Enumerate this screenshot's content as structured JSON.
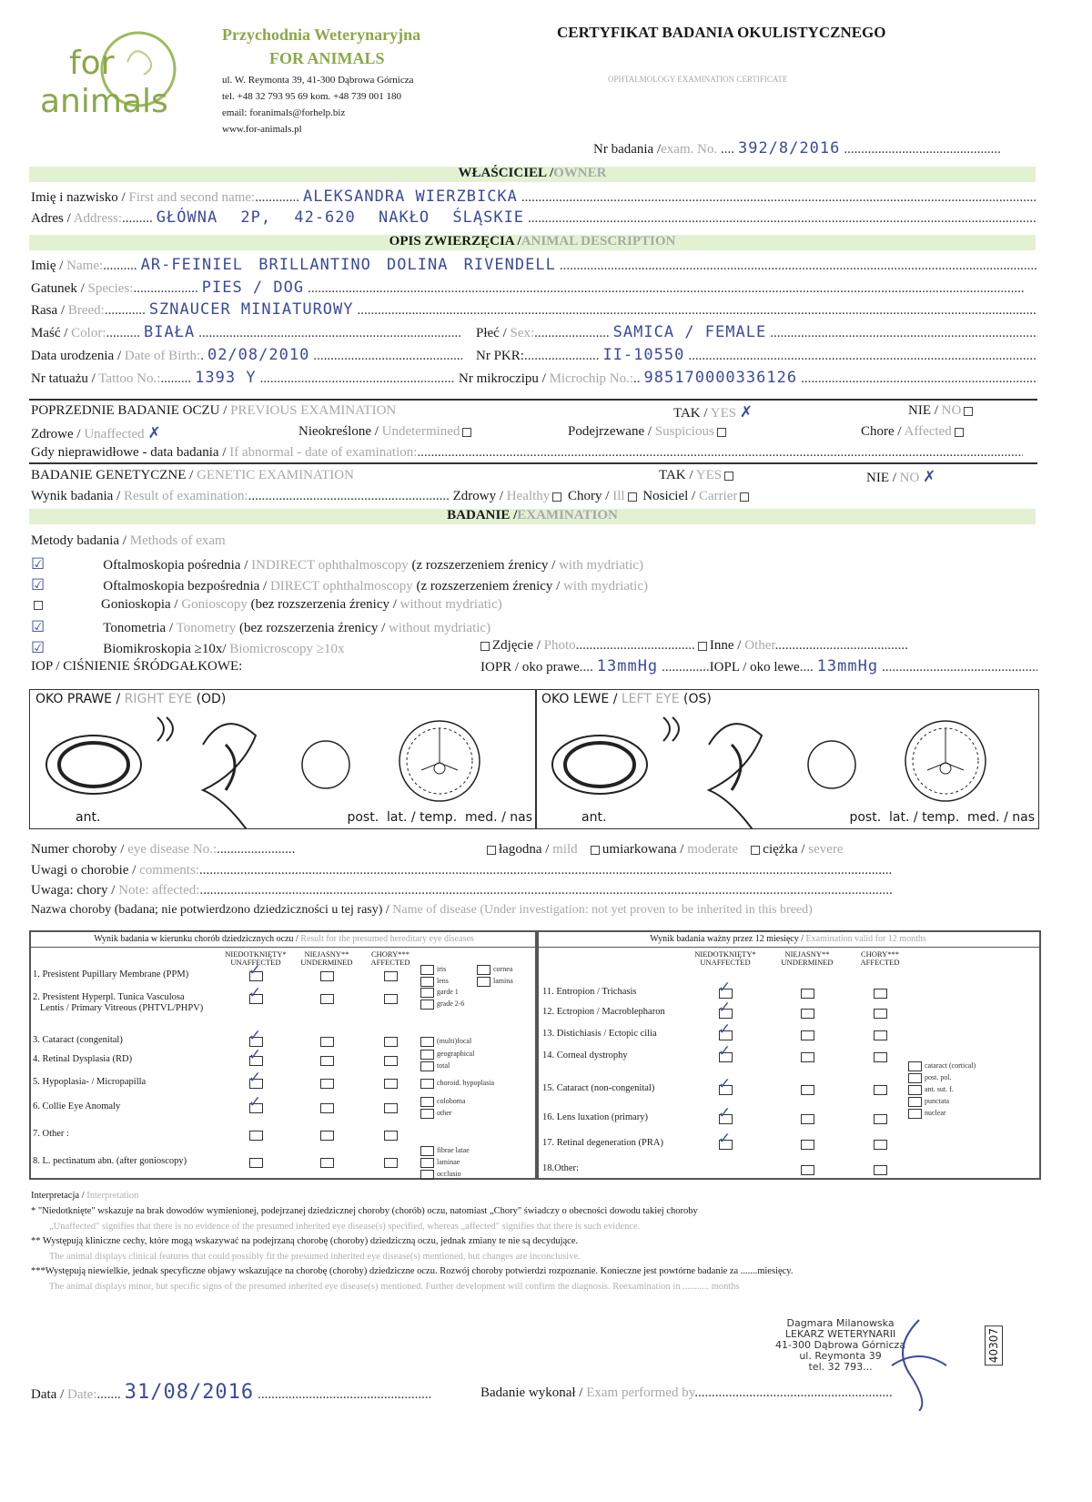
{
  "clinic": {
    "logo_text_1": "for",
    "logo_text_2": "animals",
    "name_line_1": "Przychodnia Weterynaryjna",
    "name_line_2": "FOR ANIMALS",
    "address": "ul. W. Reymonta 39, 41-300 Dąbrowa Górnicza",
    "phone": "tel. +48 32 793 95 69    kom. +48 739 001 180",
    "email": "email: foranimals@forhelp.biz",
    "www": "www.for-animals.pl",
    "brand_color": "#8aa84a"
  },
  "certificate": {
    "title": "CERTYFIKAT BADANIA OKULISTYCZNEGO",
    "subtitle": "OPHTALMOLOGY EXAMINATION CERTIFICATE",
    "exam_no_label_pl": "Nr badania /",
    "exam_no_label_en": "exam. No.",
    "exam_no": "392/8/2016"
  },
  "owner": {
    "section_pl": "WŁAŚCICIEL /",
    "section_en": "OWNER",
    "name_label_pl": "Imię i nazwisko /",
    "name_label_en": "First and second name:",
    "name": "ALEKSANDRA WIERZBICKA",
    "address_label_pl": "Adres /",
    "address_label_en": "Address:",
    "address": "GŁÓWNA 2P, 42-620 NAKŁO ŚLĄSKIE"
  },
  "animal": {
    "section_pl": "OPIS ZWIERZĘCIA /",
    "section_en": "ANIMAL DESCRIPTION",
    "name_label_pl": "Imię /",
    "name_label_en": "Name:",
    "name": "AR-FEINIEL BRILLANTINO DOLINA RIVENDELL",
    "species_label_pl": "Gatunek /",
    "species_label_en": "Species:",
    "species": "PIES / DOG",
    "breed_label_pl": "Rasa /",
    "breed_label_en": "Breed:",
    "breed": "SZNAUCER MINIATUROWY",
    "color_label_pl": "Maść /",
    "color_label_en": "Color:",
    "color": "BIAŁA",
    "sex_label_pl": "Płeć /",
    "sex_label_en": "Sex:",
    "sex": "SAMICA / FEMALE",
    "dob_label_pl": "Data urodzenia /",
    "dob_label_en": "Date of Birth:",
    "dob": "02/08/2010",
    "pkr_label": "Nr PKR:",
    "pkr": "II-10550",
    "tattoo_label_pl": "Nr tatuażu /",
    "tattoo_label_en": "Tattoo No.:",
    "tattoo": "1393 Y",
    "chip_label_pl": "Nr mikroczipu /",
    "chip_label_en": "Microchip No.:",
    "chip": "985170000336126"
  },
  "previous": {
    "section_pl": "POPRZEDNIE BADANIE OCZU /",
    "section_en": "PREVIOUS EXAMINATION",
    "yes_pl": "TAK /",
    "yes_en": "YES",
    "yes_checked": true,
    "no_pl": "NIE /",
    "no_en": "NO",
    "no_checked": false,
    "unaffected_pl": "Zdrowe /",
    "unaffected_en": "Unaffected",
    "unaffected_checked": true,
    "undetermined_pl": "Nieokreślone /",
    "undetermined_en": "Undetermined",
    "suspicious_pl": "Podejrzewane /",
    "suspicious_en": "Suspicious",
    "affected_pl": "Chore /",
    "affected_en": "Affected",
    "abnormal_pl": "Gdy nieprawidłowe - data badania /",
    "abnormal_en": "If abnormal - date of examination:"
  },
  "genetic": {
    "section_pl": "BADANIE GENETYCZNE /",
    "section_en": "GENETIC EXAMINATION",
    "yes_pl": "TAK /",
    "yes_en": "YES",
    "yes_checked": false,
    "no_pl": "NIE /",
    "no_en": "NO",
    "no_checked": true,
    "result_pl": "Wynik badania /",
    "result_en": "Result of examination:",
    "healthy_pl": "Zdrowy /",
    "healthy_en": "Healthy",
    "ill_pl": "Chory /",
    "ill_en": "Ill",
    "carrier_pl": "Nosiciel /",
    "carrier_en": "Carrier"
  },
  "examination": {
    "section_pl": "BADANIE /",
    "section_en": "EXAMINATION",
    "methods_pl": "Metody badania /",
    "methods_en": "Methods of exam",
    "methods": [
      {
        "checked": true,
        "pl": "Oftalmoskopia pośrednia /",
        "en": "INDIRECT ophthalmoscopy",
        "pl2": "(z rozszerzeniem źrenicy /",
        "en2": "with mydriatic)"
      },
      {
        "checked": true,
        "pl": "Oftalmoskopia bezpośrednia /",
        "en": "DIRECT ophthalmoscopy",
        "pl2": "(z rozszerzeniem źrenicy /",
        "en2": "with mydriatic)"
      },
      {
        "checked": false,
        "pl": "Gonioskopia /",
        "en": "Gonioscopy",
        "pl2": "(bez rozszerzenia źrenicy /",
        "en2": "without mydriatic)"
      },
      {
        "checked": true,
        "pl": "Tonometria /",
        "en": "Tonometry",
        "pl2": "(bez rozszerzenia źrenicy /",
        "en2": "without mydriatic)"
      },
      {
        "checked": true,
        "pl": "Biomikroskopia ≥10x/",
        "en": "Biomicroscopy ≥10x",
        "pl2": "",
        "en2": ""
      }
    ],
    "photo_pl": "Zdjęcie /",
    "photo_en": "Photo",
    "other_pl": "Inne /",
    "other_en": "Other",
    "iop_label": "IOP / CIŚNIENIE ŚRÓDGAŁKOWE:",
    "iopr_label": "IOPR / oko prawe",
    "iopr": "13mmHg",
    "iopl_label": "IOPL / oko lewe",
    "iopl": "13mmHg"
  },
  "eyes": {
    "right_pl": "OKO PRAWE /",
    "right_en": "RIGHT EYE",
    "right_code": "(OD)",
    "left_pl": "OKO LEWE /",
    "left_en": "LEFT EYE",
    "left_code": "(OS)",
    "ant": "ant.",
    "post": "post.  lat. / temp.  med. / nas"
  },
  "disease": {
    "number_pl": "Numer choroby /",
    "number_en": "eye disease No.:",
    "mild_pl": "łagodna /",
    "mild_en": "mild",
    "moderate_pl": "umiarkowana /",
    "moderate_en": "moderate",
    "severe_pl": "ciężka /",
    "severe_en": "severe",
    "comments_pl": "Uwagi o chorobie /",
    "comments_en": "comments:",
    "note_pl": "Uwaga: chory /",
    "note_en": "Note: affected:",
    "name_pl": "Nazwa choroby (badana; nie potwierdzono dziedziczności u tej rasy) /",
    "name_en": "Name of disease (Under investigation: not yet proven to be inherited in this breed)"
  },
  "hereditary_table": {
    "title_pl": "Wynik badania w kierunku chorób  dziedzicznych  oczu /",
    "title_en": "Result for the presumed hereditary eye diseases",
    "cols": [
      "NIEDOTKNIĘTY*\nUNAFFECTED",
      "NIEJASNY**\nUNDERMINED",
      "CHORY***\nAFFECTED"
    ],
    "rows": [
      {
        "label": "1. Presistent Pupillary Membrane (PPM)",
        "unaffected": true,
        "subs": [
          "iris",
          "lens",
          "cornea",
          "lamina"
        ]
      },
      {
        "label": "2. Presistent Hyperpl. Tunica Vasculosa\n   Lentis / Primary Vitreous (PHTVL/PHPV)",
        "unaffected": true,
        "subs": [
          "garde 1",
          "grade 2-6"
        ]
      },
      {
        "label": "3. Cataract (congenital)",
        "unaffected": true,
        "subs": [
          "(multi)focal"
        ]
      },
      {
        "label": "4. Retinal Dysplasia (RD)",
        "unaffected": true,
        "subs": [
          "geographical",
          "total"
        ]
      },
      {
        "label": "5. Hypoplasia- / Micropapilla",
        "unaffected": true,
        "subs": [
          "choroid. hypoplasia"
        ]
      },
      {
        "label": "6. Collie Eye Anomaly",
        "unaffected": true,
        "subs": [
          "coloboma",
          "other"
        ]
      },
      {
        "label": "7. Other :",
        "unaffected": false,
        "subs": []
      },
      {
        "label": "8. L. pectinatum abn. (after gonioscopy)",
        "unaffected": false,
        "subs": [
          "fibrae latae",
          "laminae",
          "occlusio"
        ]
      }
    ]
  },
  "valid_table": {
    "title_pl": "Wynik badania ważny przez 12 miesięcy /",
    "title_en": "Examination valid for 12 months",
    "cols": [
      "NIEDOTKNIĘTY*\nUNAFFECTED",
      "NIEJASNY**\nUNDERMINED",
      "CHORY***\nAFFECTED"
    ],
    "rows": [
      {
        "label": "11. Entropion / Trichasis",
        "unaffected": true,
        "subs": []
      },
      {
        "label": "12. Ectropion / Macroblepharon",
        "unaffected": true,
        "subs": []
      },
      {
        "label": "13. Distichiasis / Ectopic cilia",
        "unaffected": true,
        "subs": []
      },
      {
        "label": "14. Corneal dystrophy",
        "unaffected": true,
        "subs": []
      },
      {
        "label": "15. Cataract (non-congenital)",
        "unaffected": true,
        "subs": [
          "cataract (cortical)",
          "post. pol.",
          "ant. sut. f.",
          "punctata",
          "nuclear"
        ]
      },
      {
        "label": "16. Lens luxation (primary)",
        "unaffected": true,
        "subs": []
      },
      {
        "label": "17. Retinal degeneration (PRA)",
        "unaffected": true,
        "subs": []
      },
      {
        "label": "18.Other:",
        "unaffected": false,
        "subs": []
      }
    ]
  },
  "interpretation": {
    "title_pl": "Interpretacja /",
    "title_en": "Interpretation",
    "notes": [
      {
        "pl": "*    \"Niedotknięte\" wskazuje na brak dowodów wymienionej, podejrzanej dziedzicznej choroby (chorób) oczu, natomiast „Chory\" świadczy o obecności dowodu takiej choroby",
        "en": "„Unaffected\" signifies that there is no evidence of the presumed inherited eye disease(s) specified, whereas „affected\" signifies that there is such evidence."
      },
      {
        "pl": "**  Występują kliniczne cechy, które mogą wskazywać na podejrzaną chorobę (choroby) dziedziczną oczu, jednak zmiany te nie są decydujące.",
        "en": "The animal displays clinical features that could possibly fit the presumed inherited eye disease(s) mentioned, but changes are inconclusive."
      },
      {
        "pl": "***Występują niewielkie, jednak specyficzne objawy wskazujące na chorobę (choroby) dziedziczne oczu. Rozwój choroby potwierdzi rozpoznanie. Konieczne jest powtórne badanie za .......miesięcy.",
        "en": "The animal displays minor, but specific signs of the presumed inherited eye disease(s) mentioned. Further development will confirm the diagnosis. Reexamination in ........... months"
      }
    ]
  },
  "footer": {
    "date_pl": "Data /",
    "date_en": "Date:",
    "date": "31/08/2016",
    "performed_pl": "Badanie wykonał /",
    "performed_en": "Exam performed by",
    "stamp_lines": [
      "Dagmara Milanowska",
      "LEKARZ WETERYNARII",
      "41-300 Dąbrowa Górnicza",
      "ul. Reymonta 39",
      "tel. 32 793..."
    ],
    "stamp_number": "40307"
  }
}
